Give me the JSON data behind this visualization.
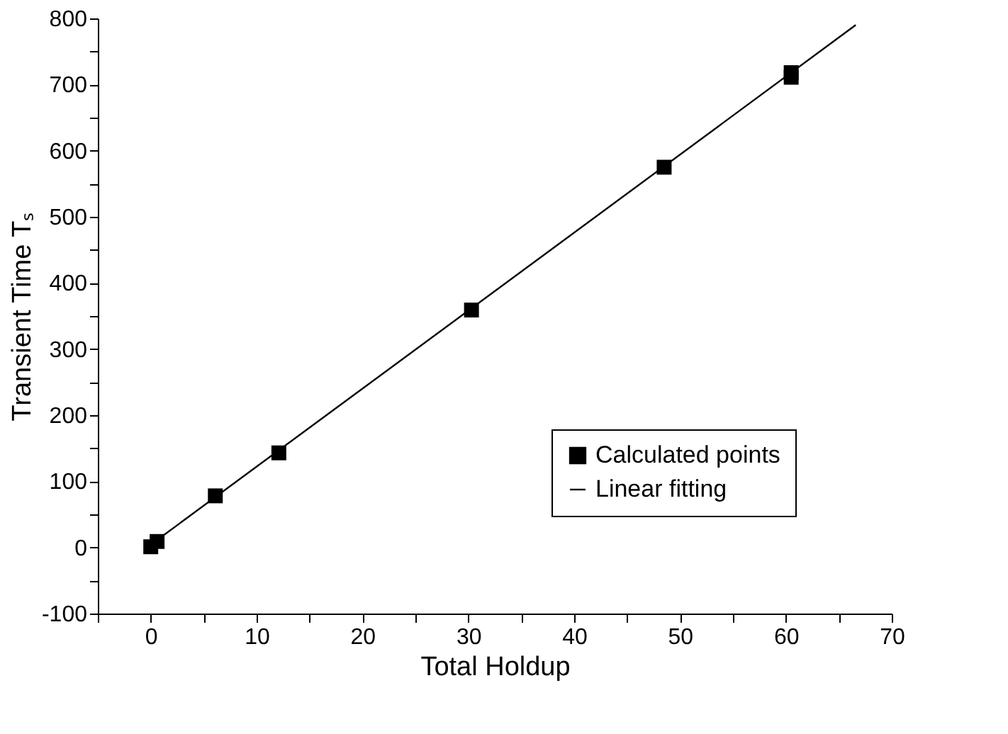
{
  "chart_data": {
    "type": "scatter",
    "xlabel": "Total Holdup",
    "ylabel": "Transient Time Tₛ",
    "xlim": [
      -5,
      70
    ],
    "ylim": [
      -100,
      800
    ],
    "xticks": [
      {
        "value": -5,
        "label": null
      },
      0,
      {
        "value": 5,
        "label": null
      },
      10,
      {
        "value": 15,
        "label": null
      },
      20,
      {
        "value": 25,
        "label": null
      },
      30,
      {
        "value": 35,
        "label": null
      },
      40,
      {
        "value": 45,
        "label": null
      },
      50,
      {
        "value": 55,
        "label": null
      },
      60,
      {
        "value": 65,
        "label": null
      },
      70
    ],
    "yticks": [
      -100,
      {
        "value": -50,
        "label": null
      },
      0,
      {
        "value": 50,
        "label": null
      },
      100,
      {
        "value": 150,
        "label": null
      },
      200,
      {
        "value": 250,
        "label": null
      },
      300,
      {
        "value": 350,
        "label": null
      },
      400,
      {
        "value": 450,
        "label": null
      },
      500,
      {
        "value": 550,
        "label": null
      },
      600,
      {
        "value": 650,
        "label": null
      },
      700,
      {
        "value": 750,
        "label": null
      },
      800
    ],
    "grid": false,
    "legend": "bottom right",
    "series": [
      {
        "name": "Calculated points",
        "marker": "square",
        "color": "#000000",
        "x": [
          0,
          0.6,
          6.1,
          12.1,
          30.3,
          48.5,
          60.5,
          60.5
        ],
        "values": [
          1,
          9,
          78,
          143,
          359,
          575,
          718,
          711
        ]
      },
      {
        "name": "Linear fitting",
        "type": "line",
        "line_style": "solid",
        "color": "#000000",
        "x": [
          0.5,
          66.6
        ],
        "values": [
          10,
          790
        ]
      }
    ]
  }
}
